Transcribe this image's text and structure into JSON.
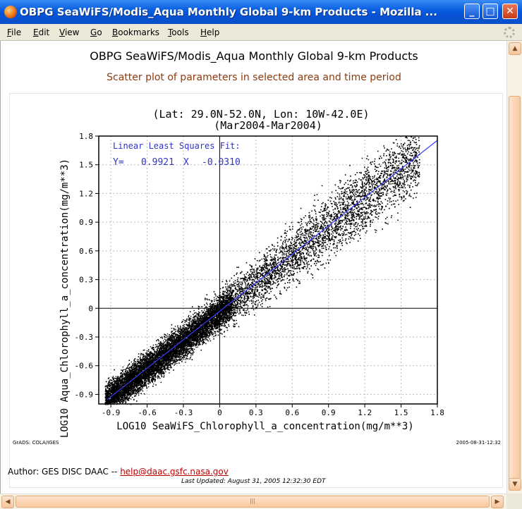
{
  "window": {
    "title": "OBPG SeaWiFS/Modis_Aqua Monthly Global 9-km Products - Mozilla ...",
    "buttons": {
      "minimize": "_",
      "maximize": "□",
      "close": "✕"
    }
  },
  "menu": [
    "File",
    "Edit",
    "View",
    "Go",
    "Bookmarks",
    "Tools",
    "Help"
  ],
  "page": {
    "title": "OBPG SeaWiFS/Modis_Aqua Monthly Global 9-km Products",
    "subtitle": "Scatter plot of parameters in selected area and time period",
    "author_prefix": "Author: GES DISC DAAC -- ",
    "author_email": "help@daac.gsfc.nasa.gov",
    "last_updated": "Last Updated: August 31, 2005 12:32:30 EDT"
  },
  "chart_data": {
    "type": "scatter",
    "title": "(Lat: 29.0N-52.0N, Lon: 10W-42.0E)",
    "subtitle": "(Mar2004-Mar2004)",
    "xlabel": "LOG10 SeaWiFS_Chlorophyll_a_concentration(mg/m**3)",
    "ylabel": "LOG10 Aqua_Chlorophyll_a_concentration(mg/m**3)",
    "xlim": [
      -1.0,
      1.8
    ],
    "ylim": [
      -1.0,
      1.8
    ],
    "x_ticks": [
      "-0.9",
      "-0.6",
      "-0.3",
      "0",
      "0.3",
      "0.6",
      "0.9",
      "1.2",
      "1.5",
      "1.8"
    ],
    "y_ticks": [
      "-0.9",
      "-0.6",
      "-0.3",
      "0",
      "0.3",
      "0.6",
      "0.9",
      "1.2",
      "1.5",
      "1.8"
    ],
    "tick_values": [
      -0.9,
      -0.6,
      -0.3,
      0,
      0.3,
      0.6,
      0.9,
      1.2,
      1.5,
      1.8
    ],
    "grid": true,
    "fit_label": "Linear Least Squares Fit:",
    "fit_eq_y": "Y=",
    "fit_eq_slope": "0.9921",
    "fit_eq_x": "X",
    "fit_eq_intercept": "-0.0310",
    "fit": {
      "slope": 0.9921,
      "intercept": -0.031,
      "color": "#3a3aff"
    },
    "fit_text_color": "#3333cc",
    "point_color": "#000000",
    "footer_left": "GrADS: COLA/IGES",
    "footer_right": "2005-08-31-12:32"
  }
}
